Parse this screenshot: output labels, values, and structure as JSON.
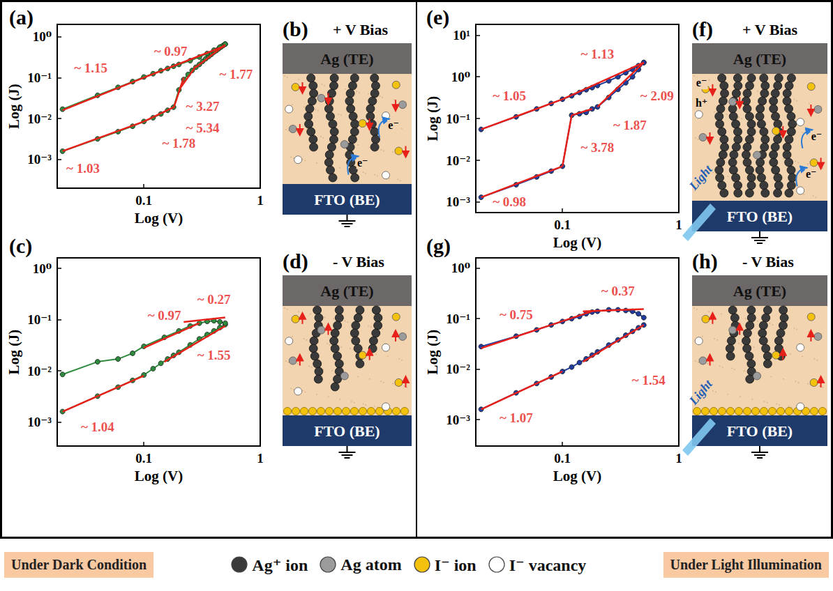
{
  "chart_data": [
    {
      "title": "(a)",
      "type": "line",
      "x_label": "Log (V)",
      "y_label": "Log (J)",
      "log": true,
      "grid": false,
      "marker": "circle",
      "color": "#2e8b3e",
      "xlim": [
        0.018,
        1
      ],
      "xticks": [
        0.1,
        1
      ],
      "ylim": [
        0.0002,
        2
      ],
      "yticks": [
        {
          "value": 0.001,
          "label": "10⁻³"
        },
        {
          "value": 0.01,
          "label": "10⁻²"
        },
        {
          "value": 0.1,
          "label": "10⁻¹"
        },
        {
          "value": 1,
          "label": "10⁰"
        }
      ],
      "series": [
        {
          "x": [
            0.02,
            0.04,
            0.06,
            0.08,
            0.1,
            0.12,
            0.14,
            0.16,
            0.18,
            0.2,
            0.22,
            0.24,
            0.26,
            0.28,
            0.3,
            0.32,
            0.34,
            0.36,
            0.38,
            0.4,
            0.42,
            0.44,
            0.46,
            0.48,
            0.5
          ],
          "values": [
            0.0016,
            0.0032,
            0.0048,
            0.0065,
            0.0085,
            0.0105,
            0.013,
            0.016,
            0.019,
            0.05,
            0.09,
            0.12,
            0.15,
            0.18,
            0.21,
            0.25,
            0.29,
            0.33,
            0.37,
            0.42,
            0.46,
            0.51,
            0.56,
            0.61,
            0.66
          ]
        },
        {
          "x": [
            0.02,
            0.04,
            0.06,
            0.08,
            0.1,
            0.12,
            0.14,
            0.16,
            0.18,
            0.2,
            0.25,
            0.3,
            0.35,
            0.4,
            0.45,
            0.5
          ],
          "values": [
            0.017,
            0.037,
            0.058,
            0.08,
            0.104,
            0.125,
            0.148,
            0.168,
            0.19,
            0.21,
            0.26,
            0.32,
            0.39,
            0.47,
            0.56,
            0.66
          ]
        }
      ],
      "fits": {
        "color": "#e8201a",
        "lines": [
          {
            "x": [
              0.02,
              0.1
            ],
            "values": [
              0.016,
              0.1
            ]
          },
          {
            "x": [
              0.1,
              0.5
            ],
            "values": [
              0.1,
              0.6
            ]
          },
          {
            "x": [
              0.28,
              0.5
            ],
            "values": [
              0.18,
              0.64
            ]
          },
          {
            "x": [
              0.2,
              0.28
            ],
            "values": [
              0.05,
              0.19
            ]
          },
          {
            "x": [
              0.18,
              0.22
            ],
            "values": [
              0.018,
              0.1
            ]
          },
          {
            "x": [
              0.1,
              0.18
            ],
            "values": [
              0.0085,
              0.019
            ]
          },
          {
            "x": [
              0.02,
              0.1
            ],
            "values": [
              0.0016,
              0.0085
            ]
          }
        ]
      },
      "annotations": [
        {
          "text": "~ 1.15",
          "x": 0.035,
          "y": 0.17
        },
        {
          "text": "~ 0.97",
          "x": 0.17,
          "y": 0.45
        },
        {
          "text": "~ 1.77",
          "x": 0.62,
          "y": 0.12
        },
        {
          "text": "~ 3.27",
          "x": 0.32,
          "y": 0.02
        },
        {
          "text": "~ 5.34",
          "x": 0.32,
          "y": 0.006
        },
        {
          "text": "~ 1.78",
          "x": 0.2,
          "y": 0.0025
        },
        {
          "text": "~ 1.03",
          "x": 0.03,
          "y": 0.0006
        }
      ]
    },
    {
      "title": "(c)",
      "type": "line",
      "x_label": "Log (V)",
      "y_label": "Log (J)",
      "log": true,
      "grid": false,
      "marker": "circle",
      "color": "#2e8b3e",
      "xlim": [
        0.018,
        1
      ],
      "xticks": [
        0.1,
        1
      ],
      "ylim": [
        0.00034,
        1.6
      ],
      "yticks": [
        {
          "value": 0.001,
          "label": "10⁻³"
        },
        {
          "value": 0.01,
          "label": "10⁻²"
        },
        {
          "value": 0.1,
          "label": "10⁻¹"
        },
        {
          "value": 1,
          "label": "10⁰"
        }
      ],
      "series": [
        {
          "x": [
            0.02,
            0.04,
            0.06,
            0.08,
            0.1,
            0.12,
            0.14,
            0.16,
            0.18,
            0.2,
            0.25,
            0.3,
            0.35,
            0.4,
            0.45,
            0.5
          ],
          "values": [
            0.0016,
            0.0032,
            0.0048,
            0.0065,
            0.0083,
            0.011,
            0.014,
            0.017,
            0.02,
            0.023,
            0.032,
            0.042,
            0.051,
            0.06,
            0.07,
            0.08
          ]
        },
        {
          "x": [
            0.02,
            0.04,
            0.06,
            0.08,
            0.1,
            0.15,
            0.2,
            0.25,
            0.3,
            0.35,
            0.4,
            0.45,
            0.5
          ],
          "values": [
            0.0085,
            0.015,
            0.017,
            0.022,
            0.03,
            0.045,
            0.06,
            0.075,
            0.085,
            0.092,
            0.095,
            0.09,
            0.085
          ]
        }
      ],
      "fits": {
        "color": "#e8201a",
        "lines": [
          {
            "x": [
              0.1,
              0.3
            ],
            "values": [
              0.028,
              0.085
            ]
          },
          {
            "x": [
              0.22,
              0.5
            ],
            "values": [
              0.09,
              0.11
            ]
          },
          {
            "x": [
              0.02,
              0.1
            ],
            "values": [
              0.0016,
              0.008
            ]
          },
          {
            "x": [
              0.15,
              0.5
            ],
            "values": [
              0.015,
              0.075
            ]
          }
        ]
      },
      "annotations": [
        {
          "text": "~ 0.97",
          "x": 0.15,
          "y": 0.12
        },
        {
          "text": "~ 0.27",
          "x": 0.4,
          "y": 0.25
        },
        {
          "text": "~ 1.04",
          "x": 0.04,
          "y": 0.0008
        },
        {
          "text": "~ 1.55",
          "x": 0.4,
          "y": 0.02
        }
      ]
    },
    {
      "title": "(e)",
      "type": "line",
      "x_label": "Log (V)",
      "y_label": "Log (J)",
      "log": true,
      "grid": false,
      "marker": "circle",
      "color": "#1f3c9e",
      "xlim": [
        0.018,
        1
      ],
      "xticks": [
        0.1,
        1
      ],
      "ylim": [
        0.00056,
        18
      ],
      "yticks": [
        {
          "value": 0.001,
          "label": "10⁻³"
        },
        {
          "value": 0.01,
          "label": "10⁻²"
        },
        {
          "value": 0.1,
          "label": "10⁻¹"
        },
        {
          "value": 1,
          "label": "10⁰"
        },
        {
          "value": 10,
          "label": "10¹"
        }
      ],
      "series": [
        {
          "x": [
            0.02,
            0.04,
            0.06,
            0.08,
            0.1,
            0.12,
            0.14,
            0.16,
            0.18,
            0.2,
            0.25,
            0.3,
            0.35,
            0.4,
            0.45,
            0.5
          ],
          "values": [
            0.0013,
            0.0026,
            0.004,
            0.0055,
            0.0072,
            0.12,
            0.13,
            0.14,
            0.17,
            0.19,
            0.32,
            0.5,
            0.72,
            1.0,
            1.5,
            2.2
          ]
        },
        {
          "x": [
            0.02,
            0.04,
            0.06,
            0.08,
            0.1,
            0.12,
            0.14,
            0.16,
            0.18,
            0.2,
            0.25,
            0.3,
            0.35,
            0.4,
            0.45,
            0.5
          ],
          "values": [
            0.055,
            0.11,
            0.17,
            0.23,
            0.29,
            0.35,
            0.42,
            0.49,
            0.55,
            0.62,
            0.8,
            1.0,
            1.25,
            1.5,
            1.85,
            2.2
          ]
        }
      ],
      "fits": {
        "color": "#e8201a",
        "lines": [
          {
            "x": [
              0.02,
              0.1
            ],
            "values": [
              0.055,
              0.29
            ]
          },
          {
            "x": [
              0.1,
              0.5
            ],
            "values": [
              0.29,
              2.2
            ]
          },
          {
            "x": [
              0.02,
              0.1
            ],
            "values": [
              0.0013,
              0.0072
            ]
          },
          {
            "x": [
              0.1,
              0.12
            ],
            "values": [
              0.0072,
              0.12
            ]
          },
          {
            "x": [
              0.12,
              0.18
            ],
            "values": [
              0.12,
              0.17
            ]
          },
          {
            "x": [
              0.2,
              0.5
            ],
            "values": [
              0.19,
              2.2
            ]
          }
        ]
      },
      "annotations": [
        {
          "text": "~ 1.05",
          "x": 0.035,
          "y": 0.35
        },
        {
          "text": "~ 1.13",
          "x": 0.2,
          "y": 3.5
        },
        {
          "text": "~ 2.09",
          "x": 0.65,
          "y": 0.35
        },
        {
          "text": "~ 1.87",
          "x": 0.38,
          "y": 0.07
        },
        {
          "text": "~ 3.78",
          "x": 0.2,
          "y": 0.02
        },
        {
          "text": "~ 0.98",
          "x": 0.035,
          "y": 0.001
        }
      ]
    },
    {
      "title": "(g)",
      "type": "line",
      "x_label": "Log (V)",
      "y_label": "Log (J)",
      "log": true,
      "grid": false,
      "marker": "circle",
      "color": "#1f3c9e",
      "xlim": [
        0.018,
        1
      ],
      "xticks": [
        0.1,
        1
      ],
      "ylim": [
        0.0003,
        1.6
      ],
      "yticks": [
        {
          "value": 0.001,
          "label": "10⁻³"
        },
        {
          "value": 0.01,
          "label": "10⁻²"
        },
        {
          "value": 0.1,
          "label": "10⁻¹"
        },
        {
          "value": 1,
          "label": "10⁰"
        }
      ],
      "series": [
        {
          "x": [
            0.02,
            0.04,
            0.06,
            0.08,
            0.1,
            0.12,
            0.14,
            0.16,
            0.18,
            0.2,
            0.25,
            0.3,
            0.35,
            0.4,
            0.45,
            0.5
          ],
          "values": [
            0.0016,
            0.0034,
            0.0052,
            0.007,
            0.009,
            0.011,
            0.0135,
            0.016,
            0.019,
            0.022,
            0.03,
            0.038,
            0.047,
            0.056,
            0.066,
            0.075
          ]
        },
        {
          "x": [
            0.02,
            0.04,
            0.06,
            0.08,
            0.1,
            0.12,
            0.14,
            0.16,
            0.18,
            0.2,
            0.25,
            0.3,
            0.35,
            0.4,
            0.45,
            0.5
          ],
          "values": [
            0.028,
            0.045,
            0.06,
            0.075,
            0.088,
            0.1,
            0.11,
            0.125,
            0.135,
            0.14,
            0.15,
            0.15,
            0.145,
            0.14,
            0.125,
            0.105
          ]
        }
      ],
      "fits": {
        "color": "#e8201a",
        "lines": [
          {
            "x": [
              0.02,
              0.18
            ],
            "values": [
              0.026,
              0.14
            ]
          },
          {
            "x": [
              0.15,
              0.5
            ],
            "values": [
              0.14,
              0.155
            ]
          },
          {
            "x": [
              0.02,
              0.1
            ],
            "values": [
              0.0016,
              0.009
            ]
          },
          {
            "x": [
              0.15,
              0.5
            ],
            "values": [
              0.014,
              0.075
            ]
          }
        ]
      },
      "annotations": [
        {
          "text": "~ 0.75",
          "x": 0.04,
          "y": 0.12
        },
        {
          "text": "~ 0.37",
          "x": 0.3,
          "y": 0.35
        },
        {
          "text": "~ 1.07",
          "x": 0.04,
          "y": 0.0011
        },
        {
          "text": "~ 1.54",
          "x": 0.55,
          "y": 0.006
        }
      ]
    }
  ],
  "diagrams": [
    {
      "title": "(b)",
      "bias": "+ V Bias",
      "top_electrode": "Ag (TE)",
      "bottom_electrode": "FTO (BE)",
      "carriers": [
        "e⁻",
        "e⁻"
      ]
    },
    {
      "title": "(d)",
      "bias": "- V Bias",
      "top_electrode": "Ag (TE)",
      "bottom_electrode": "FTO (BE)",
      "carriers": []
    },
    {
      "title": "(f)",
      "bias": "+ V Bias",
      "top_electrode": "Ag (TE)",
      "bottom_electrode": "FTO (BE)",
      "carriers": [
        "e⁻",
        "h⁺",
        "e⁻",
        "e⁻"
      ],
      "light": "Light"
    },
    {
      "title": "(h)",
      "bias": "- V Bias",
      "top_electrode": "Ag (TE)",
      "bottom_electrode": "FTO (BE)",
      "carriers": [],
      "light": "Light"
    }
  ],
  "legend_items": [
    {
      "label": "Ag⁺ ion",
      "color": "#3a3a3a"
    },
    {
      "label": "Ag atom",
      "color": "#9b9b9b"
    },
    {
      "label": "I⁻ ion",
      "color": "#f4c20d"
    },
    {
      "label": "I⁻ vacancy",
      "color": "#ffffff"
    }
  ],
  "condition_labels": {
    "dark": "Under Dark Condition",
    "light": "Under Light Illumination"
  }
}
